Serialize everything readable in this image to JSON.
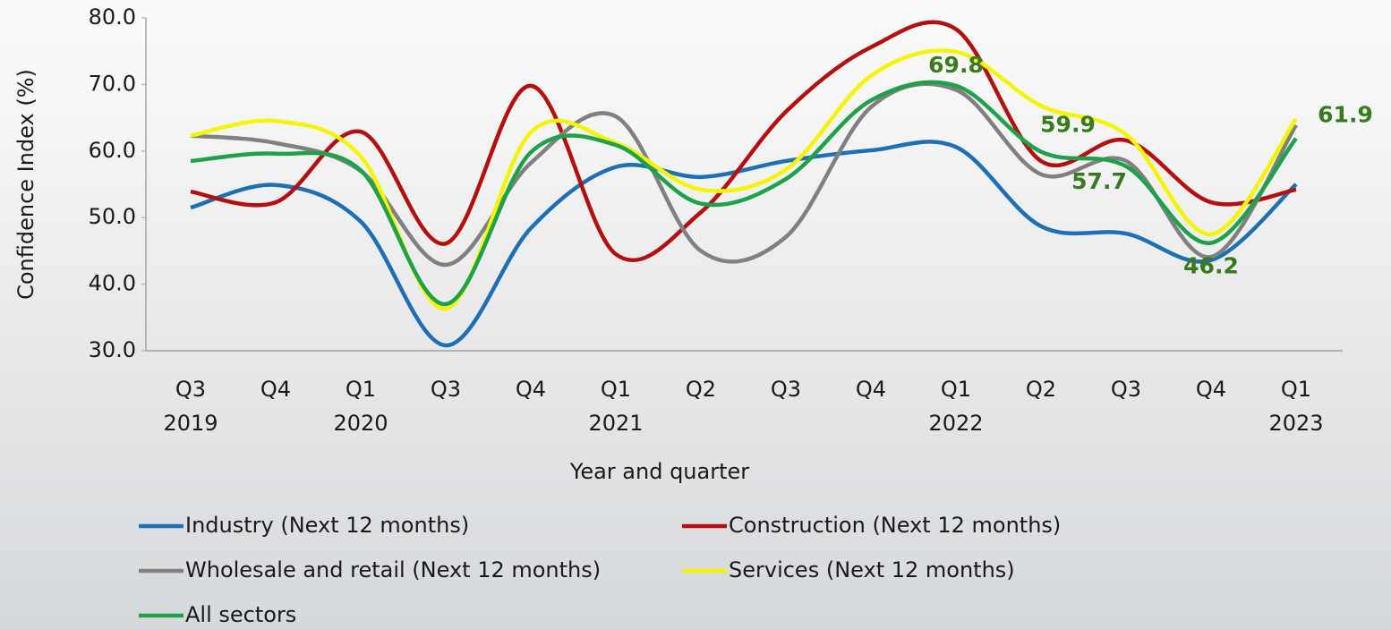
{
  "chart_data": {
    "type": "line",
    "y_label": "Confidence Index (%)",
    "x_label": "Year and quarter",
    "categories": [
      "Q3",
      "Q4",
      "Q1",
      "Q3",
      "Q4",
      "Q1",
      "Q2",
      "Q3",
      "Q4",
      "Q1",
      "Q2",
      "Q3",
      "Q4",
      "Q1"
    ],
    "category_years": [
      "2019",
      null,
      "2020",
      null,
      null,
      "2021",
      null,
      null,
      null,
      "2022",
      null,
      null,
      null,
      "2023"
    ],
    "ylim": [
      30,
      80
    ],
    "yticks": [
      {
        "value": 30,
        "label": "30.0"
      },
      {
        "value": 40,
        "label": "40.0"
      },
      {
        "value": 50,
        "label": "50.0"
      },
      {
        "value": 60,
        "label": "60.0"
      },
      {
        "value": 70,
        "label": "70.0"
      },
      {
        "value": 80,
        "label": "80.0"
      }
    ],
    "smooth": true,
    "legend": "bottom",
    "series": [
      {
        "name": "Industry (Next 12 months)",
        "color": "#1f6fb5",
        "values": [
          51.5,
          54.9,
          49.4,
          30.8,
          48.4,
          57.6,
          56.1,
          58.5,
          60.1,
          60.6,
          48.7,
          47.6,
          43.6,
          55.0
        ]
      },
      {
        "name": "Construction (Next 12 months)",
        "color": "#b40f0f",
        "values": [
          53.9,
          52.3,
          62.9,
          46.1,
          69.8,
          44.5,
          50.8,
          65.9,
          75.6,
          78.3,
          58.5,
          61.6,
          52.3,
          54.2
        ]
      },
      {
        "name": "Wholesale and retail (Next 12 months)",
        "color": "#808080",
        "values": [
          62.3,
          61.2,
          57.0,
          42.9,
          58.2,
          65.2,
          45.0,
          47.1,
          66.6,
          69.2,
          56.5,
          58.5,
          44.1,
          63.9
        ]
      },
      {
        "name": "Services (Next 12 months)",
        "color": "#f5f500",
        "values": [
          62.3,
          64.5,
          59.2,
          36.3,
          62.8,
          61.2,
          54.2,
          57.2,
          71.3,
          74.9,
          66.8,
          62.5,
          47.5,
          64.8
        ]
      },
      {
        "name": "All sectors",
        "color": "#1fa14a",
        "values": [
          58.5,
          59.6,
          57.1,
          37.0,
          59.8,
          60.9,
          52.1,
          55.8,
          67.6,
          69.8,
          59.9,
          57.7,
          46.2,
          61.9
        ],
        "value_labels": [
          null,
          null,
          null,
          null,
          null,
          null,
          null,
          null,
          null,
          "69.8",
          "59.9",
          "57.7",
          "46.2",
          "61.9"
        ]
      }
    ]
  }
}
